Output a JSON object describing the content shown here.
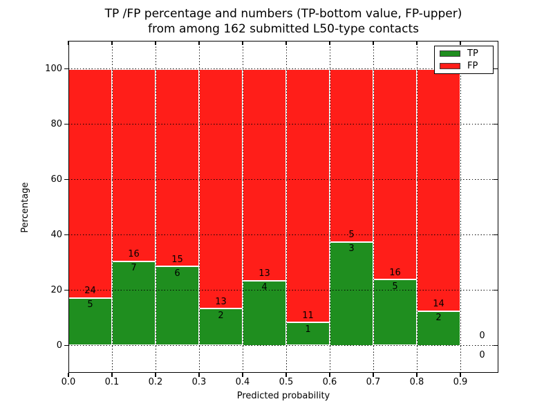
{
  "chart_data": {
    "type": "bar",
    "stacked": true,
    "normalized_to_percent": true,
    "title_lines": [
      "TP /FP percentage and numbers (TP-bottom value, FP-upper)",
      "from among 162 submitted L50-type contacts"
    ],
    "xlabel": "Predicted probability",
    "ylabel": "Percentage",
    "xticks": [
      "0.0",
      "0.1",
      "0.2",
      "0.3",
      "0.4",
      "0.5",
      "0.6",
      "0.7",
      "0.8",
      "0.9"
    ],
    "yticks": [
      0,
      20,
      40,
      60,
      80,
      100
    ],
    "ytick_labels": [
      "0",
      "20",
      "40",
      "60",
      "80",
      "100"
    ],
    "xlim": [
      0.0,
      0.99
    ],
    "ylim": [
      -10,
      110
    ],
    "grid": true,
    "grid_style": "dotted",
    "total_contacts": 162,
    "legend": {
      "position": "upper right",
      "entries": [
        {
          "label": "TP",
          "color": "#1f8e1f"
        },
        {
          "label": "FP",
          "color": "#ff1e19"
        }
      ]
    },
    "bins": [
      {
        "x_start": 0.0,
        "x_end": 0.1,
        "tp": 5,
        "fp": 24,
        "tp_pct": 17.2,
        "fp_pct": 82.8
      },
      {
        "x_start": 0.1,
        "x_end": 0.2,
        "tp": 7,
        "fp": 16,
        "tp_pct": 30.4,
        "fp_pct": 69.6
      },
      {
        "x_start": 0.2,
        "x_end": 0.3,
        "tp": 6,
        "fp": 15,
        "tp_pct": 28.6,
        "fp_pct": 71.4
      },
      {
        "x_start": 0.3,
        "x_end": 0.4,
        "tp": 2,
        "fp": 13,
        "tp_pct": 13.3,
        "fp_pct": 86.7
      },
      {
        "x_start": 0.4,
        "x_end": 0.5,
        "tp": 4,
        "fp": 13,
        "tp_pct": 23.5,
        "fp_pct": 76.5
      },
      {
        "x_start": 0.5,
        "x_end": 0.6,
        "tp": 1,
        "fp": 11,
        "tp_pct": 8.3,
        "fp_pct": 91.7
      },
      {
        "x_start": 0.6,
        "x_end": 0.7,
        "tp": 3,
        "fp": 5,
        "tp_pct": 37.5,
        "fp_pct": 62.5
      },
      {
        "x_start": 0.7,
        "x_end": 0.8,
        "tp": 5,
        "fp": 16,
        "tp_pct": 23.8,
        "fp_pct": 76.2
      },
      {
        "x_start": 0.8,
        "x_end": 0.9,
        "tp": 2,
        "fp": 14,
        "tp_pct": 12.5,
        "fp_pct": 87.5
      },
      {
        "x_start": 0.9,
        "x_end": 1.0,
        "tp": 0,
        "fp": 0,
        "tp_pct": 0,
        "fp_pct": 0
      }
    ]
  },
  "colors": {
    "tp_green": "#1f8e1f",
    "fp_red": "#ff1e19",
    "grid_black": "#000000",
    "background": "#ffffff",
    "text": "#000000"
  }
}
